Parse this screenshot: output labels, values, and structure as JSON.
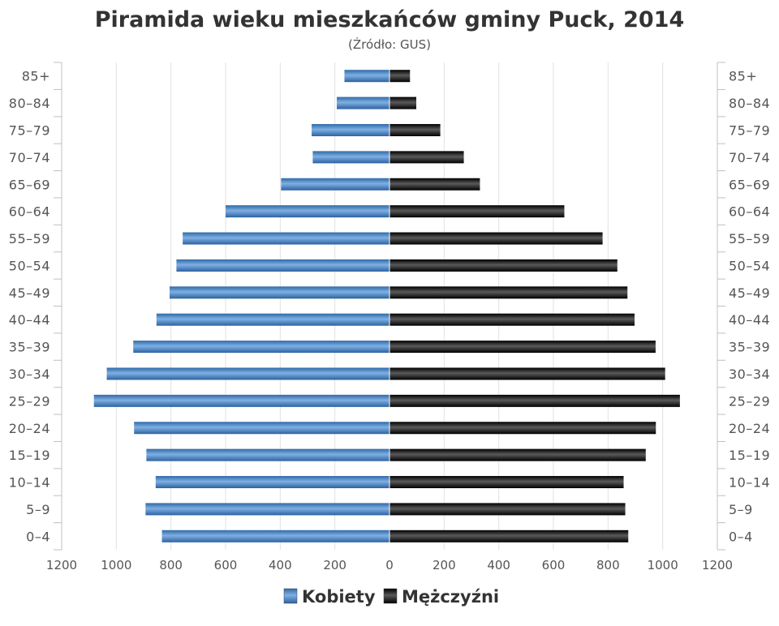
{
  "chart_data": {
    "type": "bar",
    "orientation": "horizontal-population-pyramid",
    "title": "Piramida wieku mieszkańców gminy Puck, 2014",
    "subtitle": "(Źródło: GUS)",
    "categories": [
      "0–4",
      "5–9",
      "10–14",
      "15–19",
      "20–24",
      "25–29",
      "30–34",
      "35–39",
      "40–44",
      "45–49",
      "50–54",
      "55–59",
      "60–64",
      "65–69",
      "70–74",
      "75–79",
      "80–84",
      "85+"
    ],
    "series": [
      {
        "name": "Kobiety",
        "color": "#4a86c5",
        "side": "left",
        "values": [
          833,
          893,
          856,
          890,
          935,
          1082,
          1035,
          938,
          853,
          805,
          780,
          757,
          600,
          397,
          281,
          285,
          193,
          165
        ]
      },
      {
        "name": "Mężczyźni",
        "color": "#1a1a1a",
        "side": "right",
        "values": [
          874,
          863,
          857,
          938,
          975,
          1063,
          1009,
          974,
          897,
          871,
          834,
          780,
          640,
          331,
          272,
          186,
          98,
          75
        ]
      }
    ],
    "xlim": [
      -1200,
      1200
    ],
    "x_ticks": [
      "1200",
      "1000",
      "800",
      "600",
      "400",
      "200",
      "0",
      "200",
      "400",
      "600",
      "800",
      "1000",
      "1200"
    ],
    "grid": true,
    "legend_position": "bottom-center"
  }
}
